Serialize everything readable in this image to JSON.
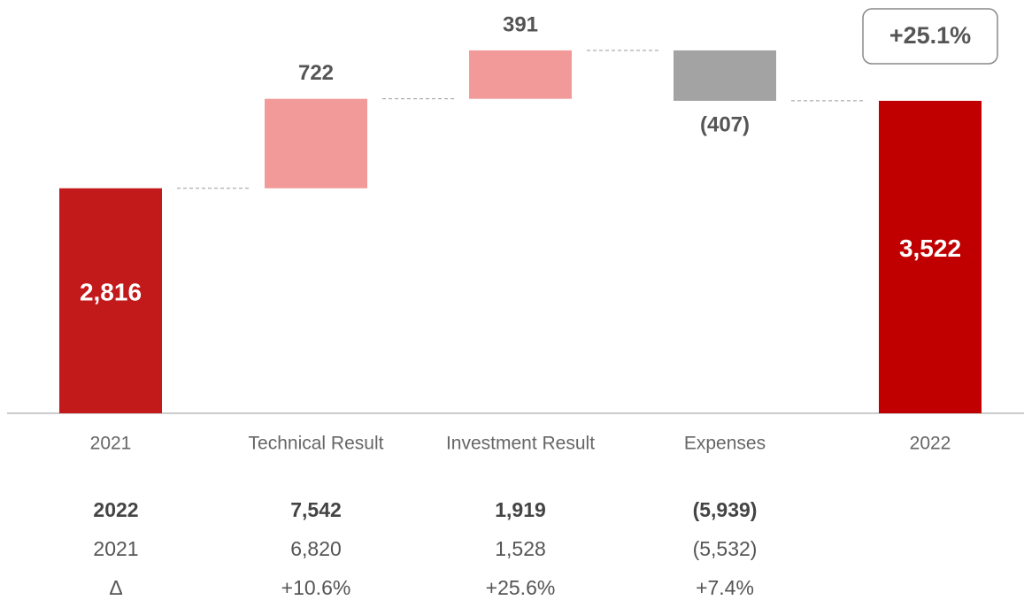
{
  "chart_data": {
    "type": "waterfall",
    "categories": [
      "2021",
      "Technical Result",
      "Investment Result",
      "Expenses",
      "2022"
    ],
    "values": [
      2816,
      722,
      391,
      -407,
      3522
    ],
    "value_labels": [
      "2,816",
      "722",
      "391",
      "(407)",
      "3,522"
    ],
    "measure": [
      "absolute",
      "relative",
      "relative",
      "relative",
      "total"
    ],
    "colors": [
      "#c2191b",
      "#f29a99",
      "#f29a99",
      "#a3a3a3",
      "#c00000"
    ],
    "annotation": "+25.1%",
    "ylim": [
      1000,
      4300
    ]
  },
  "table": {
    "rows": [
      [
        "2022",
        "7,542",
        "1,919",
        "(5,939)"
      ],
      [
        "2021",
        "6,820",
        "1,528",
        "(5,532)"
      ],
      [
        "Δ",
        "+10.6%",
        "+25.6%",
        "+7.4%"
      ]
    ]
  }
}
